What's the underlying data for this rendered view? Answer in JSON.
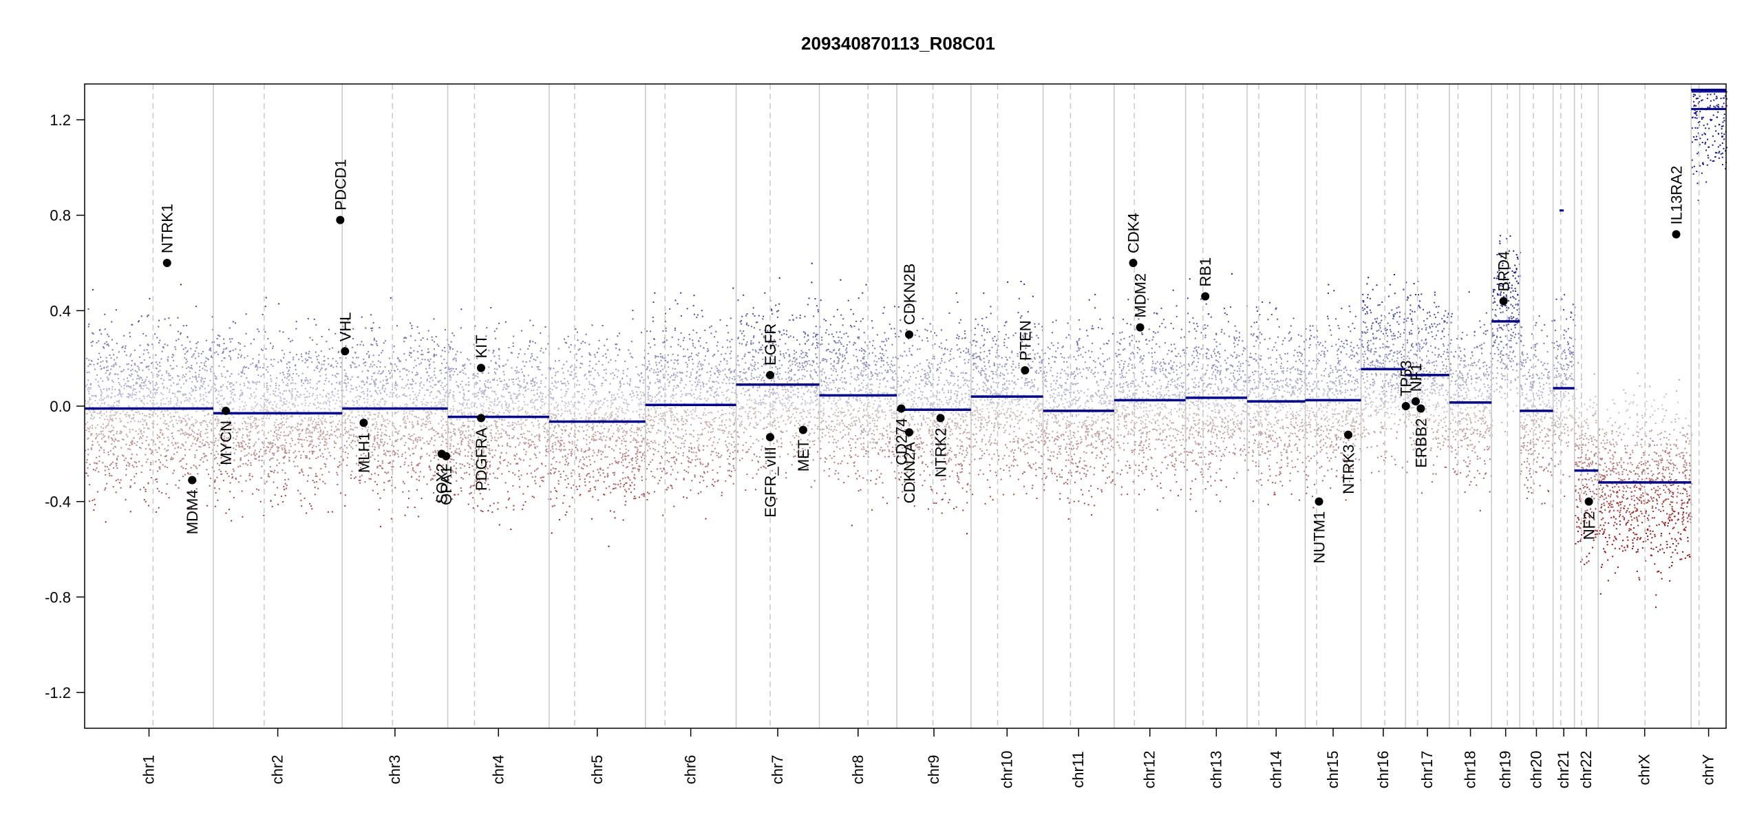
{
  "chart_data": {
    "type": "scatter",
    "title": "209340870113_R08C01",
    "xlabel": "",
    "ylabel": "",
    "ylim": [
      -1.35,
      1.35
    ],
    "yticks": [
      "-1.2",
      "-0.8",
      "-0.4",
      "0.0",
      "0.4",
      "0.8",
      "1.2"
    ],
    "colors": {
      "gain": "#0a0a8c",
      "loss": "#8b0000",
      "neutral": "#b0b0b0",
      "segment": "#00008b",
      "boundary": "#c8c8c8"
    },
    "chromosomes": [
      {
        "name": "chr1",
        "start": 0,
        "end": 0.0784,
        "cent": 0.0417,
        "seg": -0.01
      },
      {
        "name": "chr2",
        "start": 0.0784,
        "end": 0.1569,
        "cent": 0.1094,
        "seg": -0.03
      },
      {
        "name": "chr3",
        "start": 0.1569,
        "end": 0.2212,
        "cent": 0.1875,
        "seg": -0.01
      },
      {
        "name": "chr4",
        "start": 0.2212,
        "end": 0.283,
        "cent": 0.2375,
        "seg": -0.045
      },
      {
        "name": "chr5",
        "start": 0.283,
        "end": 0.3416,
        "cent": 0.2985,
        "seg": -0.065
      },
      {
        "name": "chr6",
        "start": 0.3416,
        "end": 0.3969,
        "cent": 0.3536,
        "seg": 0.005
      },
      {
        "name": "chr7",
        "start": 0.3969,
        "end": 0.4476,
        "cent": 0.4176,
        "seg": 0.09
      },
      {
        "name": "chr8",
        "start": 0.4476,
        "end": 0.4948,
        "cent": 0.4772,
        "seg": 0.045
      },
      {
        "name": "chr9",
        "start": 0.4948,
        "end": 0.54,
        "cent": 0.5168,
        "seg": -0.015
      },
      {
        "name": "chr10",
        "start": 0.54,
        "end": 0.5839,
        "cent": 0.5562,
        "seg": 0.04
      },
      {
        "name": "chr11",
        "start": 0.5839,
        "end": 0.6272,
        "cent": 0.6006,
        "seg": -0.02
      },
      {
        "name": "chr12",
        "start": 0.6272,
        "end": 0.6707,
        "cent": 0.6395,
        "seg": 0.025
      },
      {
        "name": "chr13",
        "start": 0.6707,
        "end": 0.7082,
        "cent": 0.6813,
        "seg": 0.035
      },
      {
        "name": "chr14",
        "start": 0.7082,
        "end": 0.7436,
        "cent": 0.7153,
        "seg": 0.02
      },
      {
        "name": "chr15",
        "start": 0.7436,
        "end": 0.7776,
        "cent": 0.7505,
        "seg": 0.025
      },
      {
        "name": "chr16",
        "start": 0.7776,
        "end": 0.8047,
        "cent": 0.7921,
        "seg": 0.155
      },
      {
        "name": "chr17",
        "start": 0.8047,
        "end": 0.8314,
        "cent": 0.812,
        "seg": 0.13
      },
      {
        "name": "chr18",
        "start": 0.8314,
        "end": 0.8571,
        "cent": 0.8367,
        "seg": 0.015
      },
      {
        "name": "chr19",
        "start": 0.8571,
        "end": 0.8743,
        "cent": 0.8668,
        "seg": 0.355
      },
      {
        "name": "chr20",
        "start": 0.8743,
        "end": 0.8946,
        "cent": 0.8826,
        "seg": -0.02
      },
      {
        "name": "chr21",
        "start": 0.8946,
        "end": 0.9076,
        "cent": 0.8993,
        "seg": 0.075
      },
      {
        "name": "chr22",
        "start": 0.9076,
        "end": 0.9221,
        "cent": 0.9119,
        "seg": -0.27
      },
      {
        "name": "chrX",
        "start": 0.9221,
        "end": 0.9787,
        "cent": 0.9506,
        "seg": -0.32
      },
      {
        "name": "chrY",
        "start": 0.9787,
        "end": 1.0,
        "cent": 0.9835,
        "seg": 1.325
      }
    ],
    "extra_segments": [
      {
        "chromosome": "chrY",
        "value": 1.245
      },
      {
        "chromosome": "chr21",
        "value": 0.82
      }
    ],
    "genes": [
      {
        "name": "NTRK1",
        "x": 0.0502,
        "value": 0.6,
        "label": "up"
      },
      {
        "name": "MDM4",
        "x": 0.0655,
        "value": -0.31,
        "label": "down"
      },
      {
        "name": "MYCN",
        "x": 0.086,
        "value": -0.02,
        "label": "down"
      },
      {
        "name": "PDCD1",
        "x": 0.1557,
        "value": 0.78,
        "label": "up"
      },
      {
        "name": "VHL",
        "x": 0.1586,
        "value": 0.23,
        "label": "up"
      },
      {
        "name": "MLH1",
        "x": 0.17,
        "value": -0.07,
        "label": "down"
      },
      {
        "name": "SOX2",
        "x": 0.2175,
        "value": -0.2,
        "label": "down"
      },
      {
        "name": "OPA1",
        "x": 0.2202,
        "value": -0.21,
        "label": "down"
      },
      {
        "name": "KIT",
        "x": 0.2415,
        "value": 0.16,
        "label": "up"
      },
      {
        "name": "PDGFRA",
        "x": 0.2415,
        "value": -0.05,
        "label": "down"
      },
      {
        "name": "EGFR",
        "x": 0.4176,
        "value": 0.13,
        "label": "up"
      },
      {
        "name": "EGFR_vIII",
        "x": 0.4176,
        "value": -0.13,
        "label": "down"
      },
      {
        "name": "MET",
        "x": 0.4377,
        "value": -0.1,
        "label": "down"
      },
      {
        "name": "CD274",
        "x": 0.4975,
        "value": -0.01,
        "label": "down"
      },
      {
        "name": "CDKN2A",
        "x": 0.5023,
        "value": -0.11,
        "label": "down"
      },
      {
        "name": "CDKN2B",
        "x": 0.5023,
        "value": 0.3,
        "label": "up"
      },
      {
        "name": "NTRK2",
        "x": 0.5214,
        "value": -0.05,
        "label": "down"
      },
      {
        "name": "PTEN",
        "x": 0.5729,
        "value": 0.15,
        "label": "up"
      },
      {
        "name": "CDK4",
        "x": 0.6388,
        "value": 0.6,
        "label": "up"
      },
      {
        "name": "MDM2",
        "x": 0.643,
        "value": 0.33,
        "label": "up"
      },
      {
        "name": "RB1",
        "x": 0.6827,
        "value": 0.46,
        "label": "up"
      },
      {
        "name": "NUTM1",
        "x": 0.752,
        "value": -0.4,
        "label": "down"
      },
      {
        "name": "NTRK3",
        "x": 0.7698,
        "value": -0.12,
        "label": "down"
      },
      {
        "name": "TP53",
        "x": 0.8049,
        "value": 0.0,
        "label": "up"
      },
      {
        "name": "NF1",
        "x": 0.8109,
        "value": 0.02,
        "label": "up"
      },
      {
        "name": "ERBB2",
        "x": 0.814,
        "value": -0.01,
        "label": "down"
      },
      {
        "name": "BRD4",
        "x": 0.8644,
        "value": 0.44,
        "label": "up"
      },
      {
        "name": "NF2",
        "x": 0.9164,
        "value": -0.4,
        "label": "down"
      },
      {
        "name": "IL13RA2",
        "x": 0.9696,
        "value": 0.72,
        "label": "up"
      }
    ]
  }
}
